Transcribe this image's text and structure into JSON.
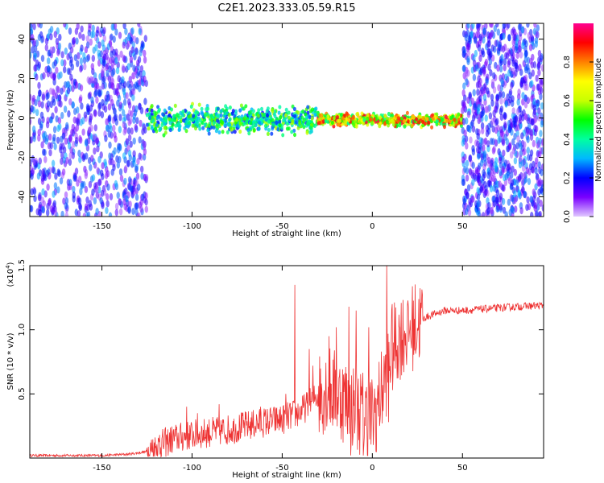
{
  "title": "C2E1.2023.333.05.59.R15",
  "chart_data": [
    {
      "type": "heatmap",
      "xlabel": "Height of straight line (km)",
      "ylabel": "Frequency (Hz)",
      "xlim": [
        -190,
        95
      ],
      "ylim": [
        -50,
        48
      ],
      "x_ticks": [
        -150,
        -100,
        -50,
        0,
        50
      ],
      "y_ticks": [
        -40,
        -20,
        0,
        20,
        40
      ],
      "colorbar": {
        "label": "Normalized spectral amplitude",
        "range": [
          0,
          1
        ],
        "ticks": [
          "0.0",
          "0.2",
          "0.4",
          "0.6",
          "0.8"
        ],
        "ticks_values": [
          0,
          0.2,
          0.4,
          0.6,
          0.8
        ],
        "colormap": [
          "#e0c8ff",
          "#7a00ff",
          "#0000ff",
          "#00b8ff",
          "#00ffa0",
          "#00ff00",
          "#c8ff00",
          "#ffff00",
          "#ff8000",
          "#ff0000",
          "#ff0090"
        ]
      },
      "regions": [
        {
          "x": [
            -190,
            -125
          ],
          "freq_spread": [
            -50,
            48
          ],
          "amplitude": [
            0.05,
            0.3
          ]
        },
        {
          "x": [
            -125,
            -30
          ],
          "freq_spread": [
            -10,
            8
          ],
          "amplitude": [
            0.2,
            0.6
          ]
        },
        {
          "x": [
            -30,
            50
          ],
          "freq_spread": [
            -5,
            3
          ],
          "amplitude": [
            0.4,
            0.95
          ]
        },
        {
          "x": [
            50,
            95
          ],
          "freq_spread": [
            -50,
            48
          ],
          "amplitude": [
            0.05,
            0.3
          ]
        }
      ]
    },
    {
      "type": "line",
      "xlabel": "Height of straight line (km)",
      "ylabel": "SNR (10 * v/v)",
      "y_scale_label": "(x10",
      "y_scale_exp": "4",
      "y_scale_suffix": ")",
      "xlim": [
        -190,
        95
      ],
      "ylim": [
        0,
        1.5
      ],
      "x_ticks": [
        -150,
        -100,
        -50,
        0,
        50
      ],
      "y_ticks": [
        0.5,
        1.0,
        1.5
      ],
      "y_ticks_labels": [
        "0.5",
        "1.0",
        "1.5"
      ],
      "color": "#ee3333",
      "series": [
        {
          "x": [
            -190,
            -170,
            -150,
            -135,
            -125,
            -120,
            -115,
            -110,
            -100,
            -90,
            -80,
            -70,
            -60,
            -50,
            -45,
            -40,
            -35,
            -30,
            -25,
            -20,
            -15,
            -10,
            -5,
            0,
            5,
            10,
            15,
            20,
            25,
            30,
            40,
            50,
            60,
            70,
            80,
            95
          ],
          "y": [
            0.02,
            0.02,
            0.02,
            0.03,
            0.05,
            0.08,
            0.12,
            0.15,
            0.18,
            0.2,
            0.22,
            0.25,
            0.28,
            0.3,
            0.33,
            0.36,
            0.42,
            0.5,
            0.55,
            0.5,
            0.45,
            0.4,
            0.35,
            0.3,
            0.5,
            0.8,
            0.95,
            1.0,
            1.05,
            1.1,
            1.15,
            1.15,
            1.16,
            1.17,
            1.18,
            1.19
          ]
        }
      ],
      "spikes": [
        {
          "x": -118,
          "y": 0.18
        },
        {
          "x": -103,
          "y": 0.4
        },
        {
          "x": -97,
          "y": 0.35
        },
        {
          "x": -85,
          "y": 0.42
        },
        {
          "x": -62,
          "y": 0.4
        },
        {
          "x": -48,
          "y": 0.5
        },
        {
          "x": -43,
          "y": 1.35
        },
        {
          "x": -35,
          "y": 0.85
        },
        {
          "x": -33,
          "y": 0.72
        },
        {
          "x": -24,
          "y": 0.95
        },
        {
          "x": -20,
          "y": 1.02
        },
        {
          "x": -13,
          "y": 1.18
        },
        {
          "x": -9,
          "y": 1.15
        },
        {
          "x": -2,
          "y": 1.02
        },
        {
          "x": 8,
          "y": 1.5
        },
        {
          "x": 11,
          "y": 1.2
        },
        {
          "x": 20,
          "y": 1.18
        }
      ],
      "dips": [
        {
          "x": -12,
          "y": 0.02
        },
        {
          "x": -5,
          "y": 0.02
        },
        {
          "x": 2,
          "y": 0.05
        },
        {
          "x": 9,
          "y": 0.28
        }
      ]
    }
  ]
}
